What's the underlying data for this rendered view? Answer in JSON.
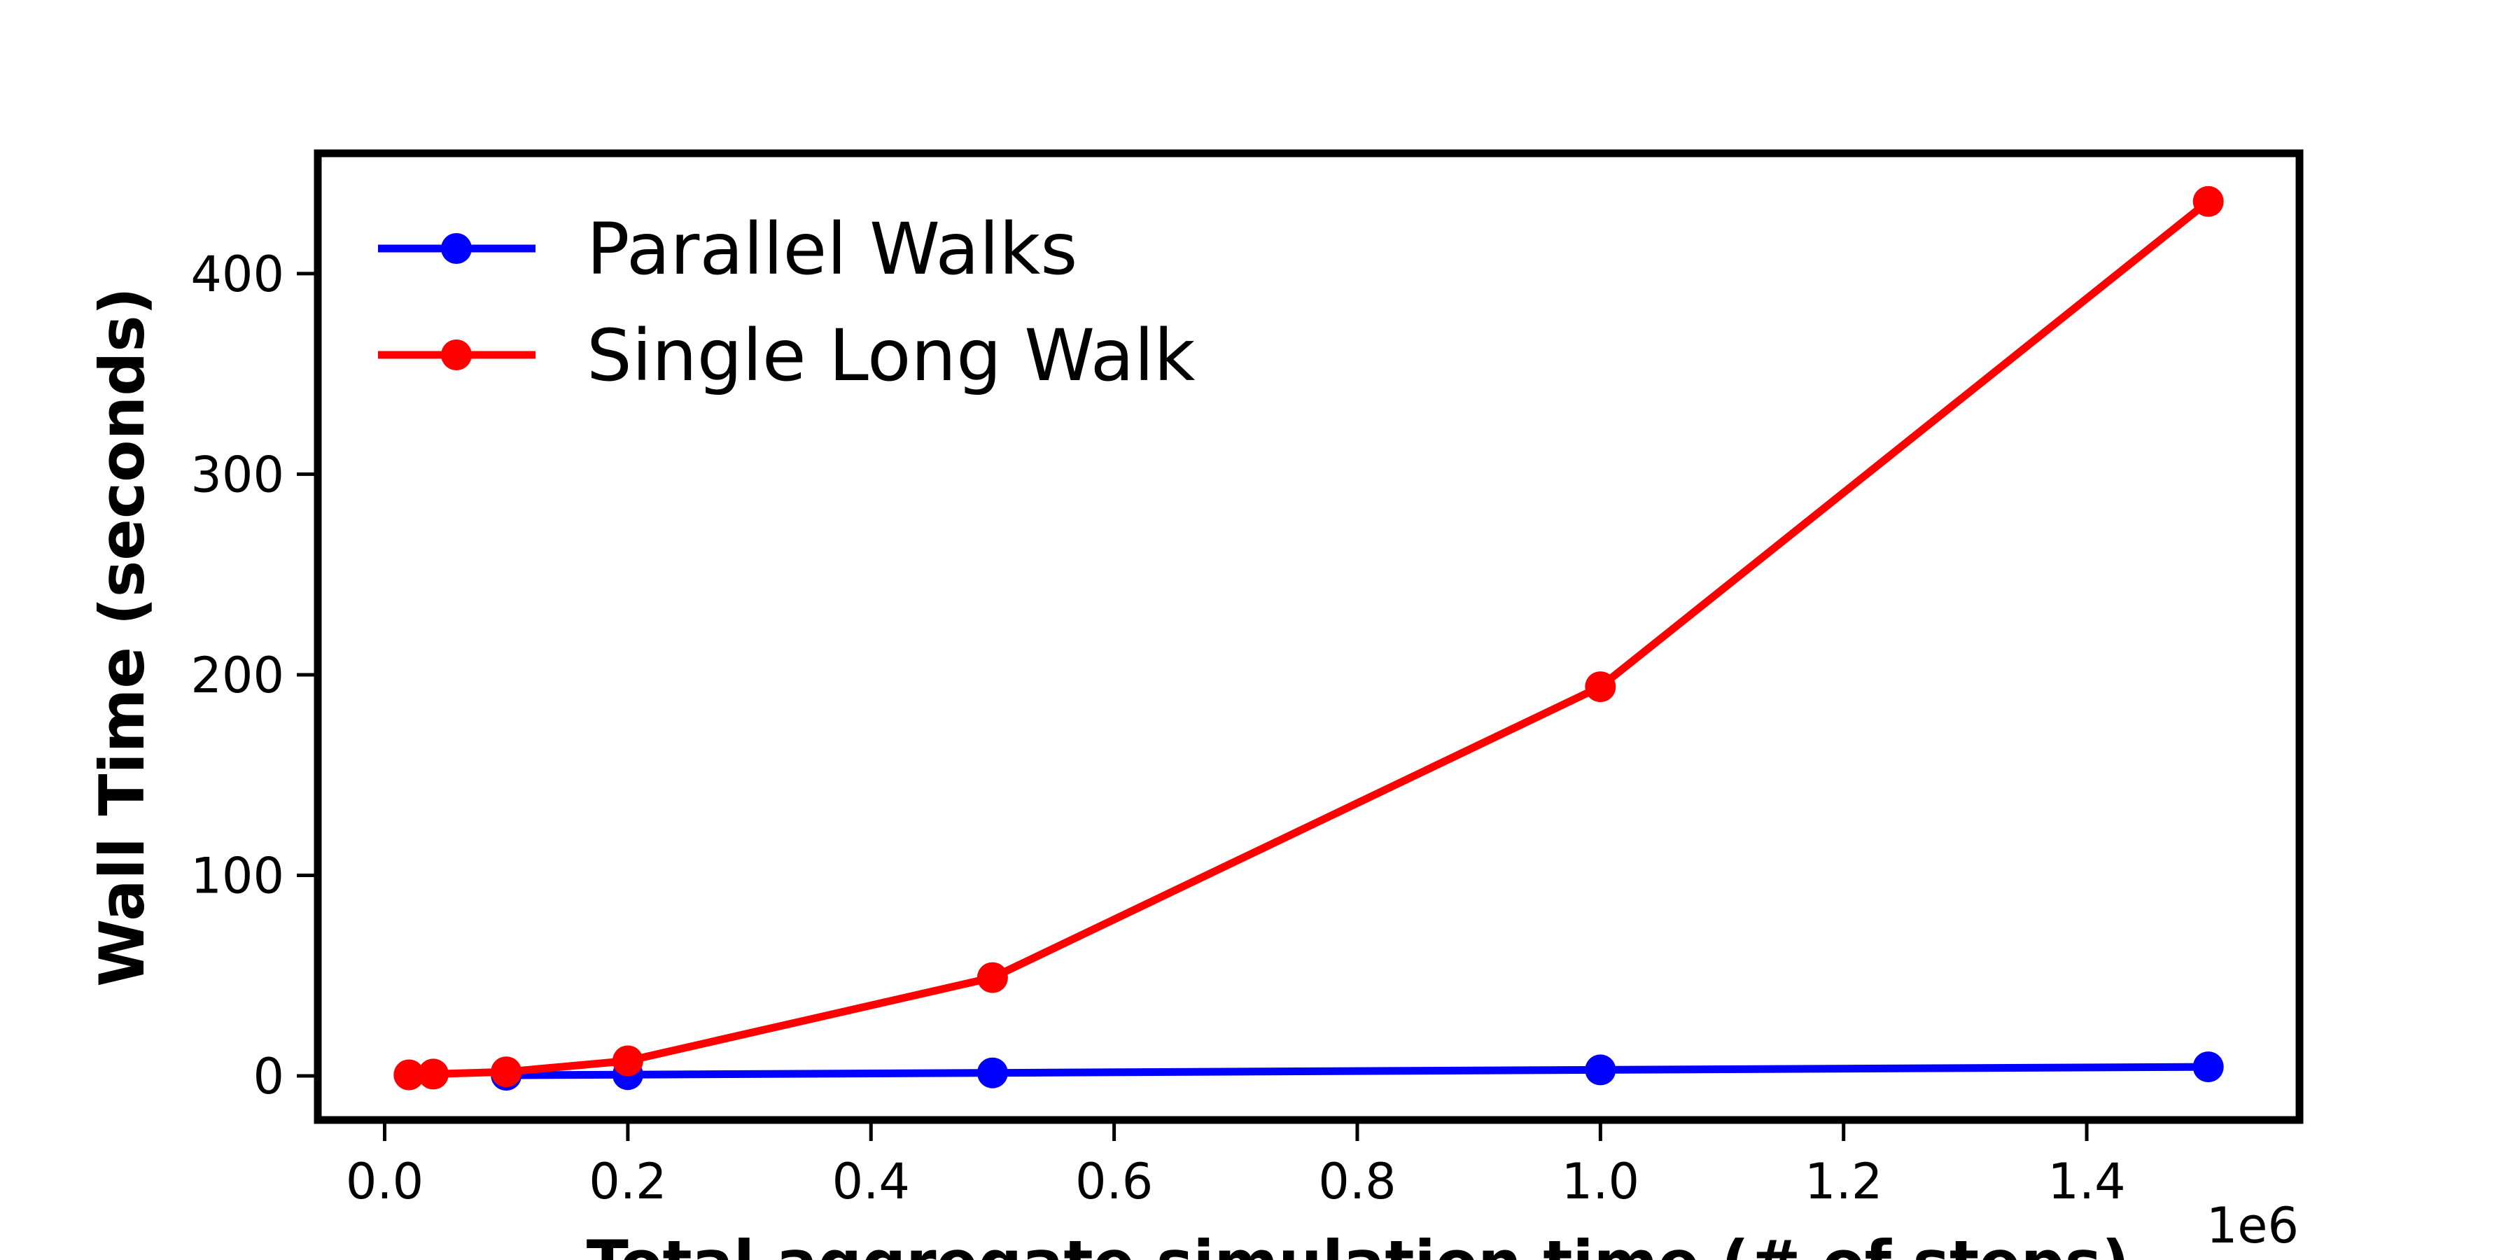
{
  "chart_data": {
    "type": "line",
    "xlabel": "Total aggregate simulation time (# of steps)",
    "ylabel": "Wall Time (seconds)",
    "x_offset_label": "1e6",
    "xlim": [
      -0.055,
      1.575
    ],
    "ylim": [
      -22,
      460
    ],
    "x_ticks": [
      0.0,
      0.2,
      0.4,
      0.6,
      0.8,
      1.0,
      1.2,
      1.4
    ],
    "x_tick_labels": [
      "0.0",
      "0.2",
      "0.4",
      "0.6",
      "0.8",
      "1.0",
      "1.2",
      "1.4"
    ],
    "y_ticks": [
      0,
      100,
      200,
      300,
      400
    ],
    "y_tick_labels": [
      "0",
      "100",
      "200",
      "300",
      "400"
    ],
    "grid": false,
    "legend_position": "top-left",
    "series": [
      {
        "name": "Parallel Walks",
        "color": "#0000ff",
        "x": [
          0.1,
          0.2,
          0.5,
          1.0,
          1.5
        ],
        "y": [
          0.3,
          0.6,
          1.5,
          3.0,
          4.5
        ]
      },
      {
        "name": "Single Long Walk",
        "color": "#ff0000",
        "x": [
          0.02,
          0.04,
          0.1,
          0.2,
          0.5,
          1.0,
          1.5
        ],
        "y": [
          0.5,
          0.9,
          2.0,
          7.5,
          49.0,
          194.0,
          436.0
        ]
      }
    ]
  }
}
